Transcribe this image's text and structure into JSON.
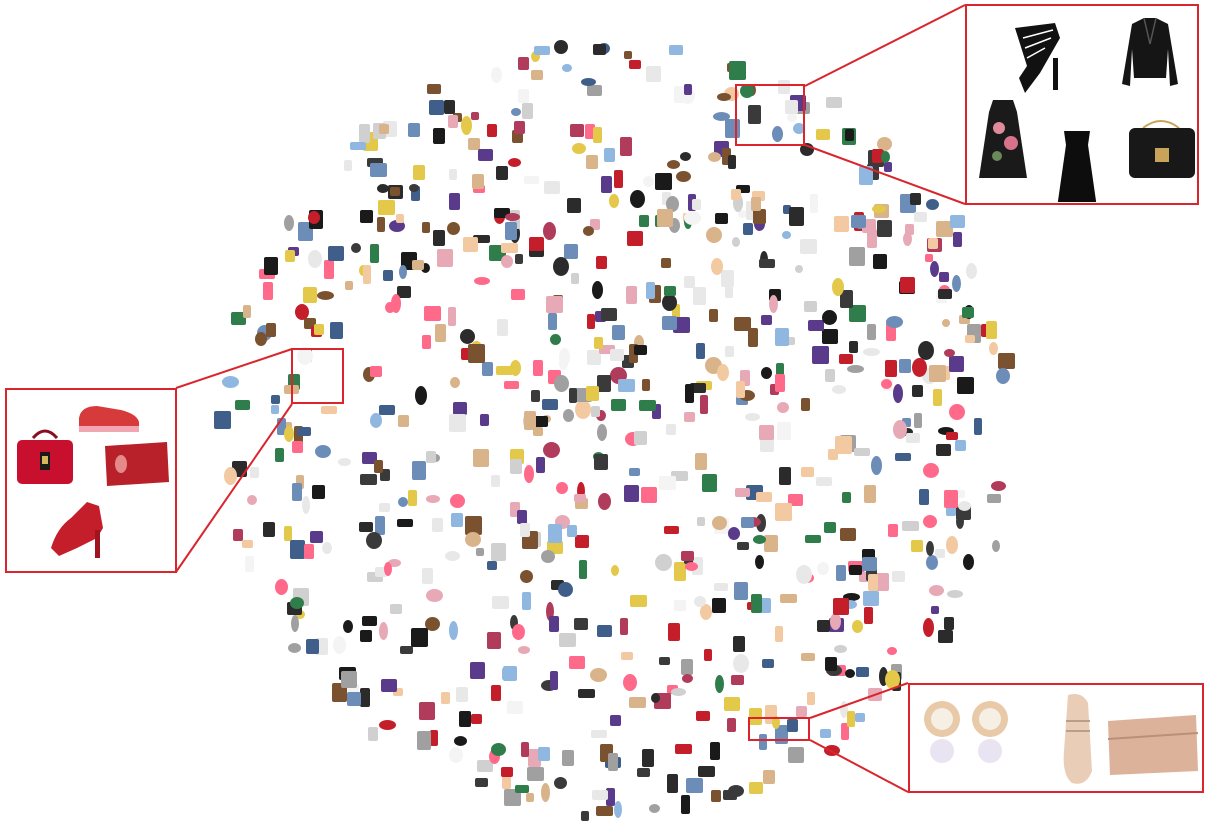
{
  "figure": {
    "background": "#ffffff",
    "accent": "#d9252b"
  },
  "clusters": [
    {
      "id": "black-formal",
      "items": [
        {
          "icon": "strappy-heel-icon",
          "color": "#111111"
        },
        {
          "icon": "leather-jacket-icon",
          "color": "#151515"
        },
        {
          "icon": "floral-dress-icon",
          "color": "#1a1a1a"
        },
        {
          "icon": "slip-dress-icon",
          "color": "#0d0d0d"
        },
        {
          "icon": "handbag-icon",
          "color": "#181818"
        }
      ]
    },
    {
      "id": "red-items",
      "items": [
        {
          "icon": "handbag-icon",
          "color": "#c8102e"
        },
        {
          "icon": "sneaker-icon",
          "color": "#d63a3a"
        },
        {
          "icon": "clutch-icon",
          "color": "#b8202a"
        },
        {
          "icon": "heel-icon",
          "color": "#c41e2a"
        }
      ]
    },
    {
      "id": "pink-jewelry",
      "items": [
        {
          "icon": "pearl-earrings-icon",
          "color": "#e8c9a8"
        },
        {
          "icon": "mary-jane-shoe-icon",
          "color": "#e9cdb6"
        },
        {
          "icon": "clutch-icon",
          "color": "#ddb29a"
        }
      ]
    }
  ],
  "palette": [
    "#1a1a1a",
    "#2b2b2b",
    "#3a3a3a",
    "#e8e8e8",
    "#d0d0d0",
    "#6b8db8",
    "#3f5f8a",
    "#c41e2a",
    "#e7a9b6",
    "#f2c9a0",
    "#d9b48a",
    "#7a5230",
    "#2f7d4a",
    "#e3c84a",
    "#a0a0a0",
    "#f4f4f4",
    "#8fb7e0",
    "#b13b5a",
    "#ff6a8a",
    "#5a3a8a"
  ]
}
